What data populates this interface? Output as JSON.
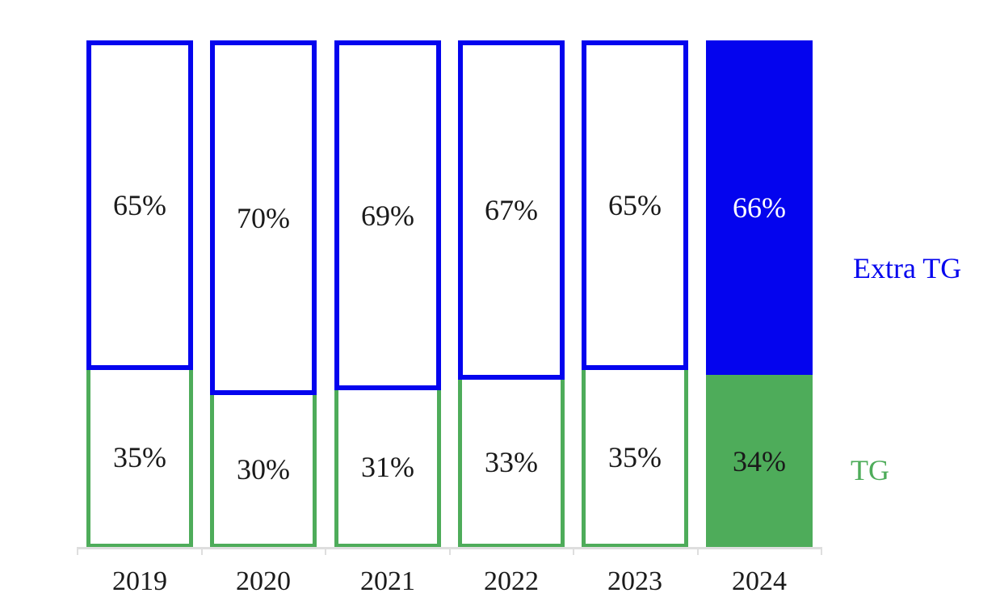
{
  "chart_data": {
    "type": "bar",
    "subtype": "stacked-100-percent-column",
    "title": "",
    "xlabel": "",
    "ylabel": "",
    "categories": [
      "2019",
      "2020",
      "2021",
      "2022",
      "2023",
      "2024"
    ],
    "series": [
      {
        "name": "TG",
        "color": "#4EAC5A",
        "values": [
          35,
          30,
          31,
          33,
          35,
          34
        ]
      },
      {
        "name": "Extra TG",
        "color": "#0404EE",
        "values": [
          65,
          70,
          69,
          67,
          65,
          66
        ]
      }
    ],
    "value_labels": [
      "65%",
      "70%",
      "69%",
      "67%",
      "65%",
      "66%",
      "35%",
      "30%",
      "31%",
      "33%",
      "35%",
      "34%"
    ],
    "value_label_suffix": "%",
    "highlighted_category": "2024",
    "outline_categories": [
      "2019",
      "2020",
      "2021",
      "2022",
      "2023"
    ],
    "ylim": [
      0,
      100
    ],
    "grid": false,
    "legend": {
      "position": "right",
      "items": [
        {
          "label": "Extra TG",
          "color": "#0404EE"
        },
        {
          "label": "TG",
          "color": "#4EAC5A"
        }
      ]
    },
    "colors": {
      "extra_tg_blue": "#0404EE",
      "tg_green": "#4EAC5A",
      "axis_gray": "#DEDEDE",
      "label_text": "#1A1A1A",
      "filled_blue_label_text": "#FFFFFF"
    }
  }
}
